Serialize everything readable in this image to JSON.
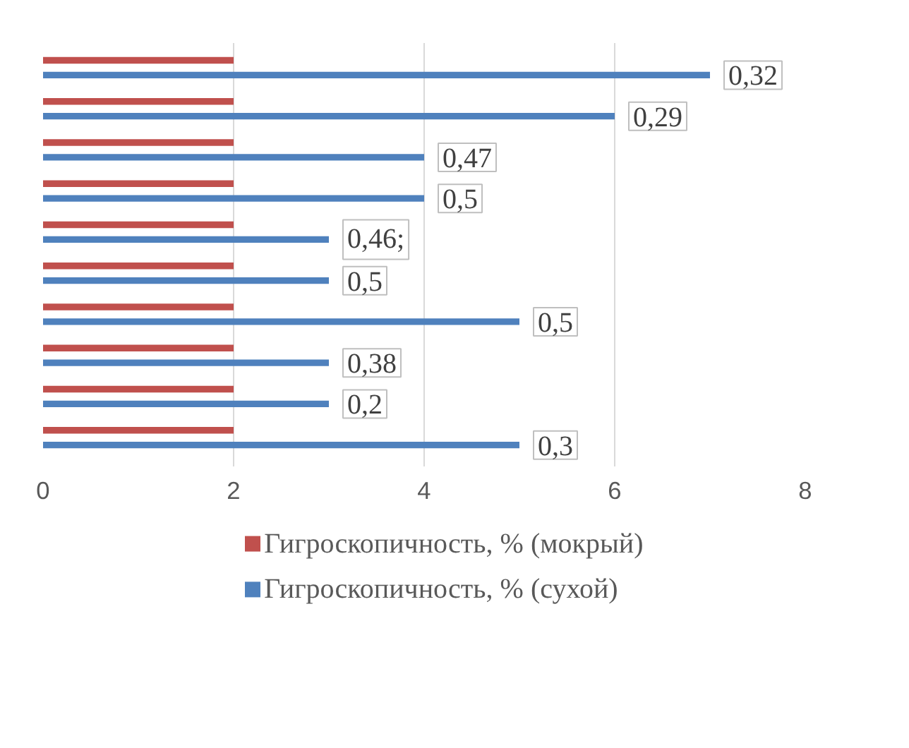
{
  "chart_data": {
    "type": "bar",
    "orientation": "horizontal",
    "categories": [
      null,
      null,
      null,
      null,
      null,
      null,
      null,
      null,
      null,
      null
    ],
    "series": [
      {
        "name": "Гигроскопичность, % (мокрый)",
        "color": "#c0504d",
        "values": [
          2,
          2,
          2,
          2,
          2,
          2,
          2,
          2,
          2,
          2
        ]
      },
      {
        "name": "Гигроскопичность, % (сухой)",
        "color": "#4f81bd",
        "values": [
          7,
          6,
          4,
          4,
          3,
          3,
          5,
          3,
          3,
          5
        ]
      }
    ],
    "annotations": [
      {
        "text": "0,32",
        "x": 7
      },
      {
        "text": "0,29",
        "x": 6
      },
      {
        "text": "0,47",
        "x": 4
      },
      {
        "text": "0,5",
        "x": 4
      },
      {
        "text": "0,46;",
        "x": 3
      },
      {
        "text": "0,5",
        "x": 3
      },
      {
        "text": "0,5",
        "x": 5
      },
      {
        "text": "0,38",
        "x": 3
      },
      {
        "text": "0,2",
        "x": 3
      },
      {
        "text": "0,3",
        "x": 5
      }
    ],
    "xlim": [
      0,
      8
    ],
    "xticks": [
      0,
      2,
      4,
      6,
      8
    ],
    "grid": "x",
    "legend": "bottom"
  }
}
